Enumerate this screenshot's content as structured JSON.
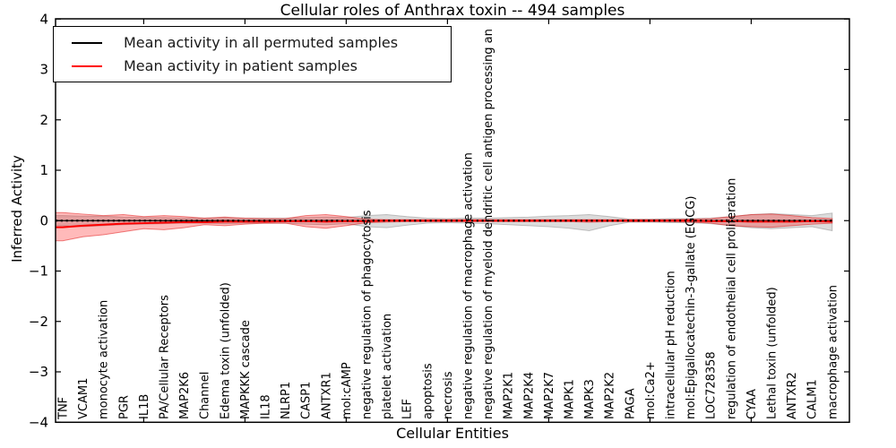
{
  "title": "Cellular roles of Anthrax toxin -- 494 samples",
  "legend": {
    "entries": [
      {
        "label": "Mean activity in all permuted samples",
        "color": "#000000"
      },
      {
        "label": "Mean activity in patient samples",
        "color": "#ff0000"
      }
    ],
    "position": "upper left"
  },
  "chart_data": {
    "type": "line",
    "title": "Cellular roles of Anthrax toxin -- 494 samples",
    "xlabel": "Cellular Entities",
    "ylabel": "Inferred Activity",
    "ylim": [
      -4,
      4
    ],
    "yticks": [
      4,
      3,
      2,
      1,
      0,
      -1,
      -2,
      -3,
      -4
    ],
    "xtick_indices": [
      4,
      9,
      14,
      19,
      24,
      29,
      34
    ],
    "grid": false,
    "legend_position": "upper left",
    "categories": [
      "TNF",
      "VCAM1",
      "monocyte activation",
      "PGR",
      "IL1B",
      "PA/Cellular Receptors",
      "MAP2K6",
      "Channel",
      "Edema toxin (unfolded)",
      "MAPKKK cascade",
      "IL18",
      "NLRP1",
      "CASP1",
      "ANTXR1",
      "mol:cAMP",
      "negative regulation of phagocytosis",
      "platelet activation",
      "LEF",
      "apoptosis",
      "necrosis",
      "negative regulation of macrophage activation",
      "negative regulation of myeloid dendritic cell antigen processing an",
      "MAP2K1",
      "MAP2K4",
      "MAP2K7",
      "MAPK1",
      "MAPK3",
      "MAP2K2",
      "PAGA",
      "mol:Ca2+",
      "intracellular pH reduction",
      "mol:Epigallocatechin-3-gallate (EGCG)",
      "LOC728358",
      "regulation of endothelial cell proliferation",
      "CYAA",
      "Lethal toxin (unfolded)",
      "ANTXR2",
      "CALM1",
      "macrophage activation"
    ],
    "series": [
      {
        "name": "Mean activity in all permuted samples",
        "color": "#000000",
        "line_style": "solid with dotted overlay",
        "values": [
          0,
          0,
          0,
          0,
          0,
          0,
          0,
          0,
          0,
          0,
          0,
          0,
          0,
          0,
          0,
          0,
          0,
          0,
          0,
          0,
          0,
          0,
          0,
          0,
          0,
          0,
          0,
          0,
          0,
          0,
          0,
          0,
          0,
          0,
          0,
          0,
          0,
          0,
          0
        ]
      },
      {
        "name": "Mean activity in patient samples",
        "color": "#ff0000",
        "line_style": "solid",
        "values": [
          -0.13,
          -0.1,
          -0.08,
          -0.06,
          -0.05,
          -0.04,
          -0.03,
          -0.03,
          -0.02,
          -0.02,
          -0.02,
          -0.01,
          -0.01,
          -0.02,
          -0.01,
          -0.01,
          0,
          0,
          0,
          0,
          0,
          0,
          0,
          0,
          0,
          0,
          0,
          0,
          0,
          0,
          0,
          0,
          -0.01,
          -0.01,
          -0.02,
          -0.02,
          -0.02,
          -0.01,
          -0.02
        ]
      }
    ],
    "bands": [
      {
        "name": "permuted samples envelope",
        "fill": "rgba(128,128,128,0.28)",
        "edge": "rgba(128,128,128,0.45)",
        "upper": [
          0.1,
          0.09,
          0.09,
          0.07,
          0.06,
          0.06,
          0.05,
          0.05,
          0.06,
          0.05,
          0.05,
          0.05,
          0.06,
          0.07,
          0.06,
          0.1,
          0.12,
          0.08,
          0.05,
          0.04,
          0.05,
          0.05,
          0.06,
          0.07,
          0.09,
          0.1,
          0.12,
          0.08,
          0.03,
          0.03,
          0.04,
          0.04,
          0.05,
          0.08,
          0.12,
          0.14,
          0.12,
          0.1,
          0.15
        ],
        "lower": [
          -0.1,
          -0.12,
          -0.1,
          -0.08,
          -0.07,
          -0.06,
          -0.05,
          -0.05,
          -0.06,
          -0.05,
          -0.05,
          -0.05,
          -0.07,
          -0.08,
          -0.06,
          -0.12,
          -0.14,
          -0.09,
          -0.05,
          -0.04,
          -0.05,
          -0.06,
          -0.08,
          -0.1,
          -0.12,
          -0.15,
          -0.2,
          -0.1,
          -0.03,
          -0.03,
          -0.04,
          -0.04,
          -0.06,
          -0.1,
          -0.14,
          -0.16,
          -0.14,
          -0.12,
          -0.2
        ]
      },
      {
        "name": "patient samples envelope",
        "fill": "rgba(255,0,0,0.27)",
        "edge": "rgba(225,30,30,0.55)",
        "upper": [
          0.16,
          0.13,
          0.1,
          0.12,
          0.08,
          0.1,
          0.08,
          0.05,
          0.07,
          0.05,
          0.04,
          0.04,
          0.1,
          0.12,
          0.08,
          0.03,
          0.02,
          0.02,
          0.02,
          0.02,
          0.02,
          0.02,
          0.02,
          0.02,
          0.02,
          0.02,
          0.02,
          0.02,
          0.02,
          0.02,
          0.02,
          0.03,
          0.04,
          0.08,
          0.12,
          0.13,
          0.1,
          0.06,
          0.04
        ],
        "lower": [
          -0.4,
          -0.32,
          -0.28,
          -0.22,
          -0.16,
          -0.18,
          -0.14,
          -0.08,
          -0.1,
          -0.07,
          -0.05,
          -0.05,
          -0.12,
          -0.15,
          -0.1,
          -0.04,
          -0.03,
          -0.02,
          -0.02,
          -0.02,
          -0.02,
          -0.02,
          -0.02,
          -0.02,
          -0.02,
          -0.02,
          -0.03,
          -0.02,
          -0.02,
          -0.02,
          -0.02,
          -0.03,
          -0.05,
          -0.1,
          -0.12,
          -0.13,
          -0.1,
          -0.07,
          -0.05
        ]
      }
    ]
  }
}
